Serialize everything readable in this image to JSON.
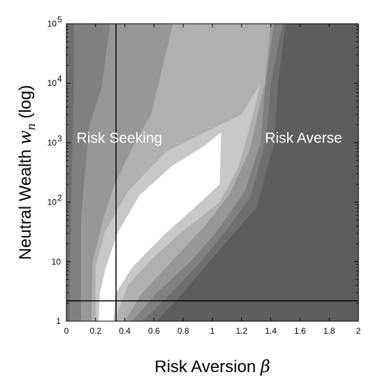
{
  "chart_data": {
    "type": "heatmap",
    "xlabel": "Risk Aversion β",
    "ylabel": "Neutral Wealth w_n (log)",
    "ylabel_parts": {
      "main": "Neutral Wealth ",
      "var": "w",
      "sub": "n",
      "suffix": " (log)"
    },
    "xlabel_parts": {
      "main": "Risk Aversion ",
      "var": "β"
    },
    "xlim": [
      0,
      2
    ],
    "ylim": [
      1,
      100000
    ],
    "y_scale": "log",
    "x_ticks": [
      "0",
      "0.2",
      "0.4",
      "0.6",
      "0.8",
      "1",
      "1.2",
      "1.4",
      "1.6",
      "1.8",
      "2"
    ],
    "y_ticks": [
      {
        "value": 1,
        "base": "1",
        "exp": ""
      },
      {
        "value": 10,
        "base": "10",
        "exp": ""
      },
      {
        "value": 100,
        "base": "10",
        "exp": "2"
      },
      {
        "value": 1000,
        "base": "10",
        "exp": "3"
      },
      {
        "value": 10000,
        "base": "10",
        "exp": "4"
      },
      {
        "value": 100000,
        "base": "10",
        "exp": "5"
      }
    ],
    "annotations": [
      {
        "text": "Risk Seeking",
        "x": 0.07,
        "y": 1000
      },
      {
        "text": "Risk Averse",
        "x": 1.36,
        "y": 1000
      }
    ],
    "reference_lines": [
      {
        "orientation": "vertical",
        "x": 0.34
      },
      {
        "orientation": "horizontal",
        "y": 2.2
      }
    ],
    "colors": {
      "background": "#5d5d5d",
      "level_1": "#6e6e6e",
      "level_2": "#808080",
      "level_3": "#979797",
      "level_4": "#b0b0b0",
      "level_5": "#c8c8c8",
      "peak": "#ffffff",
      "lines": "#000000"
    }
  }
}
